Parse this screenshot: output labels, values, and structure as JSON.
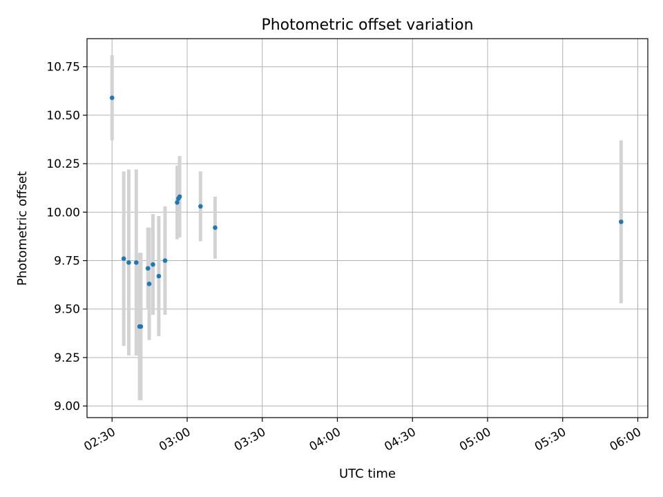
{
  "chart_data": {
    "type": "scatter",
    "title": "Photometric offset variation",
    "xlabel": "UTC time",
    "ylabel": "Photometric offset",
    "xlim": [
      "02:20",
      "06:04"
    ],
    "ylim": [
      8.94,
      10.895
    ],
    "x_ticks": [
      "02:30",
      "03:00",
      "03:30",
      "04:00",
      "04:30",
      "05:00",
      "05:30",
      "06:00"
    ],
    "y_ticks": [
      "9.00",
      "9.25",
      "9.50",
      "9.75",
      "10.00",
      "10.25",
      "10.50",
      "10.75"
    ],
    "grid": true,
    "marker_color": "#1f77b4",
    "errorbar_color": "#d3d3d3",
    "points": [
      {
        "t": "02:30:00",
        "y": 10.59,
        "err": 0.22
      },
      {
        "t": "02:34:40",
        "y": 9.76,
        "err": 0.45
      },
      {
        "t": "02:36:40",
        "y": 9.74,
        "err": 0.48
      },
      {
        "t": "02:39:40",
        "y": 9.74,
        "err": 0.48
      },
      {
        "t": "02:41:00",
        "y": 9.41,
        "err": 0.38
      },
      {
        "t": "02:41:30",
        "y": 9.41,
        "err": 0.38
      },
      {
        "t": "02:44:20",
        "y": 9.71,
        "err": 0.21
      },
      {
        "t": "02:44:50",
        "y": 9.63,
        "err": 0.29
      },
      {
        "t": "02:46:20",
        "y": 9.73,
        "err": 0.26
      },
      {
        "t": "02:48:40",
        "y": 9.67,
        "err": 0.31
      },
      {
        "t": "02:51:10",
        "y": 9.75,
        "err": 0.28
      },
      {
        "t": "02:56:00",
        "y": 10.05,
        "err": 0.19
      },
      {
        "t": "02:56:30",
        "y": 10.07,
        "err": 0.17
      },
      {
        "t": "02:57:00",
        "y": 10.08,
        "err": 0.21
      },
      {
        "t": "03:05:20",
        "y": 10.03,
        "err": 0.18
      },
      {
        "t": "03:11:10",
        "y": 9.92,
        "err": 0.16
      },
      {
        "t": "05:53:20",
        "y": 9.95,
        "err": 0.42
      }
    ]
  }
}
